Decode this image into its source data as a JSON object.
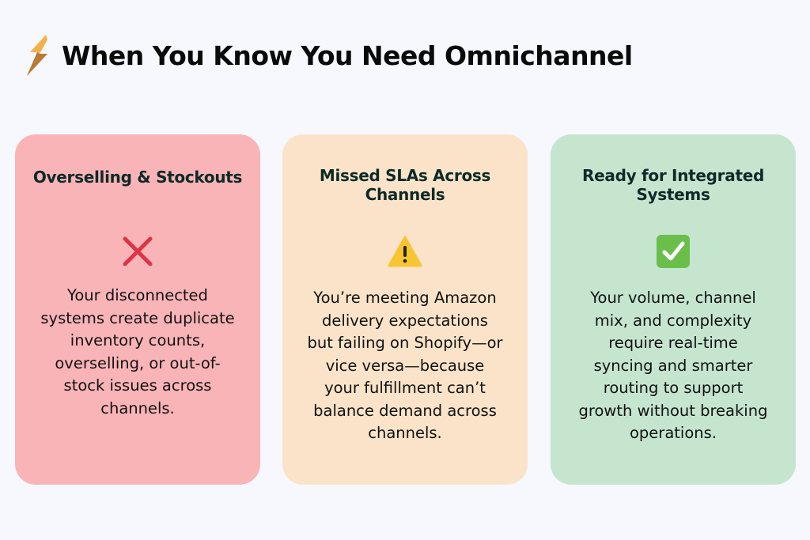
{
  "header": {
    "icon": "lightning-bolt-icon",
    "title": "When You Know You Need Omnichannel"
  },
  "cards": [
    {
      "title": "Overselling & Stockouts",
      "icon": "red-x-icon",
      "background": "#f9b4b7",
      "lines": [
        "Your disconnected",
        "systems create duplicate",
        "inventory counts,",
        "overselling, or out-of-",
        "stock issues across",
        "channels."
      ]
    },
    {
      "title": "Missed SLAs Across Channels",
      "icon": "warning-icon",
      "background": "#fae3c8",
      "lines": [
        "You’re meeting Amazon",
        "delivery expectations",
        "but failing on Shopify—or",
        "vice versa—because",
        "your fulfillment can’t",
        "balance demand across",
        "channels."
      ]
    },
    {
      "title": "Ready for Integrated Systems",
      "icon": "green-check-icon",
      "background": "#c5e5cf",
      "lines": [
        "Your volume, channel",
        "mix, and complexity",
        "require real-time",
        "syncing and smarter",
        "routing to support",
        "growth without breaking",
        "operations."
      ]
    }
  ]
}
